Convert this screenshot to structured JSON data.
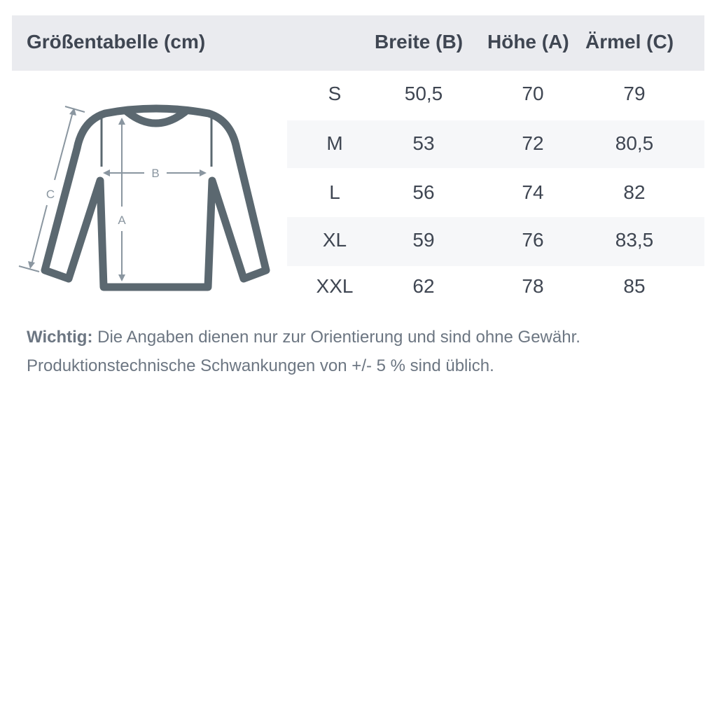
{
  "title": "Größentabelle (cm)",
  "columns": [
    "Breite (B)",
    "Höhe (A)",
    "Ärmel (C)"
  ],
  "rows": [
    {
      "size": "S",
      "breite": "50,5",
      "hoehe": "70",
      "aermel": "79"
    },
    {
      "size": "M",
      "breite": "53",
      "hoehe": "72",
      "aermel": "80,5"
    },
    {
      "size": "L",
      "breite": "56",
      "hoehe": "74",
      "aermel": "82"
    },
    {
      "size": "XL",
      "breite": "59",
      "hoehe": "76",
      "aermel": "83,5"
    },
    {
      "size": "XXL",
      "breite": "62",
      "hoehe": "78",
      "aermel": "85"
    }
  ],
  "diagram": {
    "label_a": "A",
    "label_b": "B",
    "label_c": "C"
  },
  "note": {
    "label": "Wichtig:",
    "line1": " Die Angaben dienen nur zur Orientierung und sind ohne Gewähr.",
    "line2": "Produktionstechnische Schwankungen von +/- 5 % sind üblich."
  },
  "colors": {
    "header_bg": "#eaebef",
    "text": "#3f4652",
    "garment": "#5b6870",
    "measure": "#8a96a0"
  }
}
